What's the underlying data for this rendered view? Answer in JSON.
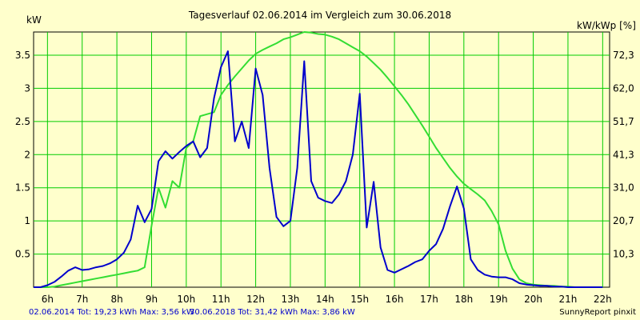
{
  "chart_data": {
    "type": "line",
    "title": "Tagesverlauf 02.06.2014 im Vergleich zum 30.06.2018",
    "ylabel_left": "kW",
    "ylabel_right": "kW/kWp [%]",
    "x_ticks": [
      "6h",
      "7h",
      "8h",
      "9h",
      "10h",
      "11h",
      "12h",
      "13h",
      "14h",
      "15h",
      "16h",
      "17h",
      "18h",
      "19h",
      "20h",
      "21h",
      "22h"
    ],
    "y_ticks_left": [
      "0.5",
      "1",
      "1.5",
      "2",
      "2.5",
      "3",
      "3.5"
    ],
    "y_ticks_right": [
      "10,3",
      "20,7",
      "31,0",
      "41,3",
      "51,7",
      "62,0",
      "72,3"
    ],
    "xlim": [
      5.6,
      22.2
    ],
    "ylim": [
      0,
      3.85
    ],
    "grid": true,
    "colors": {
      "background": "#ffffcc",
      "grid": "#00cc00",
      "series1": "#0000cc",
      "series2": "#33dd33"
    },
    "series": [
      {
        "name": "02.06.2014",
        "color": "#0000cc",
        "x": [
          5.6,
          5.8,
          6.0,
          6.2,
          6.4,
          6.6,
          6.8,
          7.0,
          7.2,
          7.4,
          7.6,
          7.8,
          8.0,
          8.2,
          8.4,
          8.6,
          8.8,
          9.0,
          9.2,
          9.4,
          9.6,
          9.8,
          10.0,
          10.2,
          10.4,
          10.6,
          10.8,
          11.0,
          11.2,
          11.4,
          11.6,
          11.8,
          12.0,
          12.2,
          12.4,
          12.6,
          12.8,
          13.0,
          13.2,
          13.4,
          13.6,
          13.8,
          14.0,
          14.2,
          14.4,
          14.6,
          14.8,
          15.0,
          15.2,
          15.4,
          15.6,
          15.8,
          16.0,
          16.2,
          16.4,
          16.6,
          16.8,
          17.0,
          17.2,
          17.4,
          17.6,
          17.8,
          18.0,
          18.2,
          18.4,
          18.6,
          18.8,
          19.0,
          19.2,
          19.4,
          19.6,
          19.8,
          20.0,
          20.2,
          20.4,
          20.6,
          20.8,
          21.0,
          21.2,
          21.4,
          21.6,
          21.8,
          22.0
        ],
        "y": [
          0.0,
          0.0,
          0.03,
          0.08,
          0.16,
          0.25,
          0.3,
          0.26,
          0.27,
          0.3,
          0.32,
          0.36,
          0.42,
          0.52,
          0.72,
          1.23,
          0.98,
          1.18,
          1.9,
          2.05,
          1.94,
          2.04,
          2.13,
          2.2,
          1.96,
          2.1,
          2.85,
          3.32,
          3.56,
          2.2,
          2.5,
          2.1,
          3.3,
          2.9,
          1.8,
          1.06,
          0.92,
          1.0,
          1.8,
          3.41,
          1.6,
          1.35,
          1.3,
          1.27,
          1.4,
          1.6,
          2.0,
          2.92,
          0.9,
          1.59,
          0.6,
          0.26,
          0.22,
          0.27,
          0.32,
          0.38,
          0.42,
          0.55,
          0.65,
          0.88,
          1.22,
          1.52,
          1.19,
          0.42,
          0.26,
          0.19,
          0.16,
          0.15,
          0.15,
          0.12,
          0.06,
          0.04,
          0.03,
          0.02,
          0.02,
          0.01,
          0.01,
          0.0,
          0.0,
          0.0,
          0.0,
          0.0,
          0.0
        ]
      },
      {
        "name": "30.06.2018",
        "color": "#33dd33",
        "x": [
          5.6,
          5.8,
          6.0,
          6.2,
          6.4,
          6.6,
          6.8,
          7.0,
          7.2,
          7.4,
          7.6,
          7.8,
          8.0,
          8.2,
          8.4,
          8.6,
          8.8,
          9.0,
          9.2,
          9.4,
          9.6,
          9.8,
          10.0,
          10.2,
          10.4,
          10.6,
          10.8,
          11.0,
          11.2,
          11.4,
          11.6,
          11.8,
          12.0,
          12.2,
          12.4,
          12.6,
          12.8,
          13.0,
          13.2,
          13.4,
          13.6,
          13.8,
          14.0,
          14.2,
          14.4,
          14.6,
          14.8,
          15.0,
          15.2,
          15.4,
          15.6,
          15.8,
          16.0,
          16.2,
          16.4,
          16.6,
          16.8,
          17.0,
          17.2,
          17.4,
          17.6,
          17.8,
          18.0,
          18.2,
          18.4,
          18.6,
          18.8,
          19.0,
          19.2,
          19.4,
          19.6,
          19.8,
          20.0,
          20.2,
          20.4,
          20.6,
          20.8,
          21.0,
          21.2,
          21.4,
          21.6,
          21.8,
          22.0
        ],
        "y": [
          0.0,
          0.0,
          0.0,
          0.01,
          0.03,
          0.05,
          0.07,
          0.09,
          0.11,
          0.13,
          0.15,
          0.17,
          0.19,
          0.21,
          0.23,
          0.25,
          0.3,
          0.93,
          1.5,
          1.2,
          1.6,
          1.5,
          2.1,
          2.2,
          2.58,
          2.61,
          2.64,
          2.9,
          3.05,
          3.18,
          3.3,
          3.42,
          3.52,
          3.58,
          3.63,
          3.68,
          3.74,
          3.77,
          3.81,
          3.85,
          3.84,
          3.82,
          3.81,
          3.78,
          3.74,
          3.68,
          3.62,
          3.56,
          3.48,
          3.38,
          3.28,
          3.16,
          3.03,
          2.9,
          2.76,
          2.6,
          2.44,
          2.27,
          2.1,
          1.95,
          1.8,
          1.67,
          1.56,
          1.48,
          1.4,
          1.31,
          1.15,
          0.95,
          0.55,
          0.28,
          0.12,
          0.06,
          0.04,
          0.03,
          0.02,
          0.02,
          0.01,
          0.01,
          0.0,
          0.0,
          0.0,
          0.0,
          0.0
        ]
      }
    ],
    "footer": {
      "series1_label": "02.06.2014 Tot: 19,23 kWh Max: 3,56 kW",
      "series2_label": "30.06.2018 Tot: 31,42 kWh Max: 3,86 kW",
      "brand": "SunnyReport pinxit"
    }
  }
}
